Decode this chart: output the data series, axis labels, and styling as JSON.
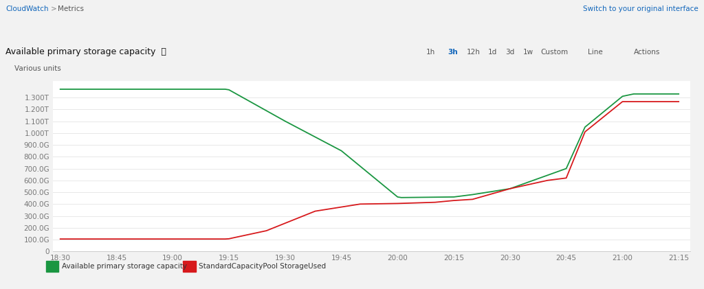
{
  "title": "Available primary storage capacity",
  "ylabel": "Various units",
  "background_color": "#ffffff",
  "outer_bg_color": "#f2f2f2",
  "green_color": "#1a9641",
  "red_color": "#d7191c",
  "yticks": [
    0,
    100,
    200,
    300,
    400,
    500,
    600,
    700,
    800,
    900,
    1000,
    1100,
    1200,
    1300
  ],
  "ytick_labels": [
    "0",
    "100.0G",
    "200.0G",
    "300.0G",
    "400.0G",
    "500.0G",
    "600.0G",
    "700.0G",
    "800.0G",
    "900.0G",
    "1.000T",
    "1.100T",
    "1.200T",
    "1.300T"
  ],
  "xtick_labels": [
    "18:30",
    "18:45",
    "19:00",
    "19:15",
    "19:30",
    "19:45",
    "20:00",
    "20:15",
    "20:30",
    "20:45",
    "21:00",
    "21:15"
  ],
  "xtick_positions": [
    0,
    15,
    30,
    45,
    60,
    75,
    90,
    105,
    120,
    135,
    150,
    165
  ],
  "green_x": [
    0,
    15,
    30,
    44,
    45,
    60,
    75,
    90,
    91,
    105,
    110,
    120,
    135,
    140,
    150,
    153,
    165
  ],
  "green_y": [
    1370,
    1370,
    1370,
    1370,
    1365,
    1100,
    850,
    460,
    455,
    460,
    480,
    530,
    700,
    1050,
    1310,
    1330,
    1330
  ],
  "red_x": [
    0,
    15,
    30,
    44,
    45,
    55,
    68,
    80,
    90,
    100,
    105,
    110,
    120,
    130,
    135,
    140,
    150,
    153,
    165
  ],
  "red_y": [
    105,
    105,
    105,
    105,
    107,
    175,
    340,
    400,
    405,
    415,
    430,
    440,
    530,
    600,
    620,
    1010,
    1265,
    1265,
    1265
  ],
  "ylim": [
    0,
    1440
  ],
  "xlim": [
    -2,
    168
  ],
  "legend_green": "Available primary storage capacity",
  "legend_red": "StandardCapacityPool StorageUsed"
}
